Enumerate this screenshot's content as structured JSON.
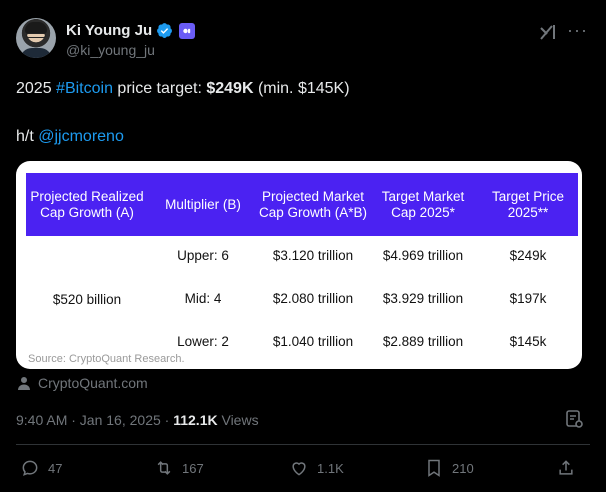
{
  "author": {
    "name": "Ki Young Ju",
    "handle": "@ki_young_ju"
  },
  "tweet": {
    "year": "2025 ",
    "hashtag": "#Bitcoin",
    "mid": " price target: ",
    "target": "$249K",
    "min": " (min. $145K)",
    "ht_prefix": "h/t ",
    "mention": "@jjcmoreno"
  },
  "table": {
    "headers": [
      "Projected Realized Cap Growth (A)",
      "Multiplier (B)",
      "Projected Market Cap Growth (A*B)",
      "Target Market Cap 2025*",
      "Target Price 2025**"
    ],
    "growth": "$520 billion",
    "rows": [
      {
        "multiplier": "Upper: 6",
        "market_cap_growth": "$3.120 trillion",
        "target_cap": "$4.969 trillion",
        "price": "$249k"
      },
      {
        "multiplier": "Mid: 4",
        "market_cap_growth": "$2.080 trillion",
        "target_cap": "$3.929 trillion",
        "price": "$197k"
      },
      {
        "multiplier": "Lower: 2",
        "market_cap_growth": "$1.040 trillion",
        "target_cap": "$2.889 trillion",
        "price": "$145k"
      }
    ],
    "source": "Source: CryptoQuant Research."
  },
  "attribution": "CryptoQuant.com",
  "meta": {
    "time": "9:40 AM · Jan 16, 2025 · ",
    "views_count": "112.1K",
    "views_label": " Views"
  },
  "actions": {
    "replies": "47",
    "reposts": "167",
    "likes": "1.1K",
    "bookmarks": "210"
  },
  "colors": {
    "background": "#000000",
    "link": "#1d9bf0",
    "table_header": "#4b22f2",
    "muted": "#71767b",
    "verified": "#1d9bf0"
  }
}
